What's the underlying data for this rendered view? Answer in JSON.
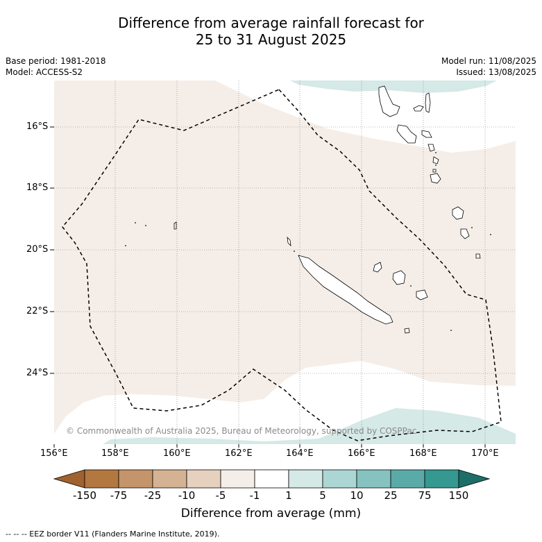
{
  "header": {
    "title_line1": "Difference from average rainfall forecast for",
    "title_line2": "25 to 31 August 2025"
  },
  "meta": {
    "base_period": "Base period: 1981-2018",
    "model": "Model: ACCESS-S2",
    "model_run": "Model run: 11/08/2025",
    "issued": "Issued: 13/08/2025"
  },
  "map": {
    "lat_labels": [
      "16°S",
      "18°S",
      "20°S",
      "22°S",
      "24°S"
    ],
    "lon_labels": [
      "156°E",
      "158°E",
      "160°E",
      "162°E",
      "164°E",
      "166°E",
      "168°E",
      "170°E"
    ],
    "copyright": "© Commonwealth of Australia 2025, Bureau of Meteorology, supported by COSPPac",
    "colors": {
      "dry_light": "#f5eee8",
      "wet_light": "#d5e9e7",
      "eez_line": "#000000"
    }
  },
  "colorbar": {
    "ticks": [
      "-150",
      "-75",
      "-25",
      "-10",
      "-5",
      "-1",
      "1",
      "5",
      "10",
      "25",
      "75",
      "150"
    ],
    "colors": [
      "#a0622e",
      "#b37840",
      "#c4946a",
      "#d4b293",
      "#e6d1bf",
      "#f5eee8",
      "#ffffff",
      "#d5e9e7",
      "#acd6d4",
      "#86c3c0",
      "#5aaba8",
      "#359891",
      "#1d6e68"
    ],
    "title": "Difference from average (mm)"
  },
  "footer": {
    "eez_note": "-- -- -- EEZ border V11 (Flanders Marine Institute, 2019)."
  }
}
